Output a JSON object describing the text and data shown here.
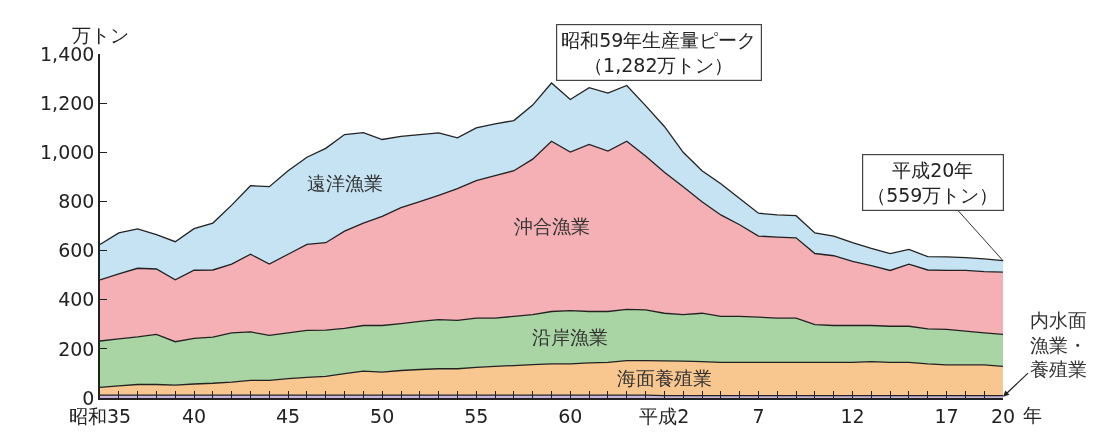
{
  "chart_data": {
    "type": "area",
    "stacked": true,
    "ylabel": "万トン",
    "xlabel": "年",
    "categories": [
      "昭和35",
      null,
      null,
      null,
      null,
      "40",
      null,
      null,
      null,
      null,
      "45",
      null,
      null,
      null,
      null,
      "50",
      null,
      null,
      null,
      null,
      "55",
      null,
      null,
      null,
      null,
      "60",
      null,
      null,
      null,
      null,
      "平成2",
      null,
      null,
      null,
      null,
      "7",
      null,
      null,
      null,
      null,
      "12",
      null,
      null,
      null,
      null,
      "17",
      null,
      null,
      "20"
    ],
    "series": [
      {
        "name": "内水面漁業・養殖業",
        "color": "#c9b6da",
        "values": [
          12,
          12,
          12,
          12,
          12,
          12,
          12,
          12,
          12,
          12,
          12,
          12,
          12,
          12,
          12,
          12,
          12,
          12,
          12,
          12,
          12,
          12,
          12,
          12,
          12,
          12,
          12,
          12,
          12,
          12,
          10,
          10,
          10,
          10,
          10,
          10,
          10,
          10,
          10,
          10,
          10,
          10,
          10,
          10,
          10,
          10,
          10,
          10,
          10
        ]
      },
      {
        "name": "海面養殖業",
        "color": "#f8c78f",
        "values": [
          31,
          37,
          43,
          43,
          40,
          45,
          48,
          53,
          60,
          60,
          67,
          72,
          76,
          87,
          97,
          93,
          100,
          104,
          107,
          107,
          113,
          117,
          120,
          124,
          127,
          127,
          131,
          133,
          140,
          140,
          141,
          140,
          138,
          135,
          135,
          135,
          135,
          135,
          135,
          135,
          135,
          138,
          135,
          135,
          129,
          125,
          125,
          125,
          119
        ]
      },
      {
        "name": "沿岸漁業",
        "color": "#a8d5a3",
        "values": [
          189,
          192,
          194,
          204,
          177,
          186,
          188,
          200,
          197,
          183,
          186,
          191,
          188,
          184,
          186,
          190,
          191,
          196,
          200,
          197,
          200,
          196,
          200,
          203,
          213,
          217,
          209,
          207,
          209,
          207,
          194,
          189,
          197,
          187,
          187,
          184,
          180,
          180,
          154,
          150,
          150,
          147,
          147,
          147,
          142,
          144,
          137,
          130,
          130
        ]
      },
      {
        "name": "沖合漁業",
        "color": "#f4b0b4",
        "values": [
          249,
          264,
          279,
          266,
          252,
          277,
          273,
          280,
          316,
          290,
          320,
          350,
          356,
          396,
          417,
          444,
          472,
          487,
          506,
          536,
          560,
          580,
          593,
          633,
          693,
          645,
          680,
          653,
          684,
          626,
          574,
          521,
          454,
          413,
          373,
          330,
          330,
          327,
          289,
          284,
          261,
          244,
          227,
          253,
          240,
          240,
          247,
          249,
          253
        ]
      },
      {
        "name": "遠洋漁業",
        "color": "#c5e3f3",
        "values": [
          144,
          167,
          160,
          140,
          155,
          169,
          191,
          240,
          279,
          315,
          340,
          355,
          384,
          393,
          368,
          313,
          290,
          273,
          254,
          207,
          214,
          211,
          204,
          220,
          237,
          214,
          231,
          236,
          227,
          205,
          186,
          140,
          126,
          127,
          107,
          93,
          90,
          90,
          84,
          80,
          76,
          70,
          69,
          60,
          54,
          55,
          52,
          52,
          47
        ]
      }
    ],
    "ylim": [
      0,
      1400
    ],
    "yticks": [
      0,
      {
        "value": 200,
        "label": "200"
      },
      {
        "value": 400,
        "label": "400"
      },
      {
        "value": 600,
        "label": "600"
      },
      {
        "value": 800,
        "label": "800"
      },
      {
        "value": 1000,
        "label": "1,000"
      },
      {
        "value": 1200,
        "label": "1,200"
      },
      {
        "value": 1400,
        "label": "1,400"
      }
    ],
    "annotations": [
      "昭和59年生産量ピーク（1,282万トン）",
      {
        "text": "平成20年（559万トン）",
        "x": "20",
        "y": 559
      }
    ],
    "legend": false
  }
}
